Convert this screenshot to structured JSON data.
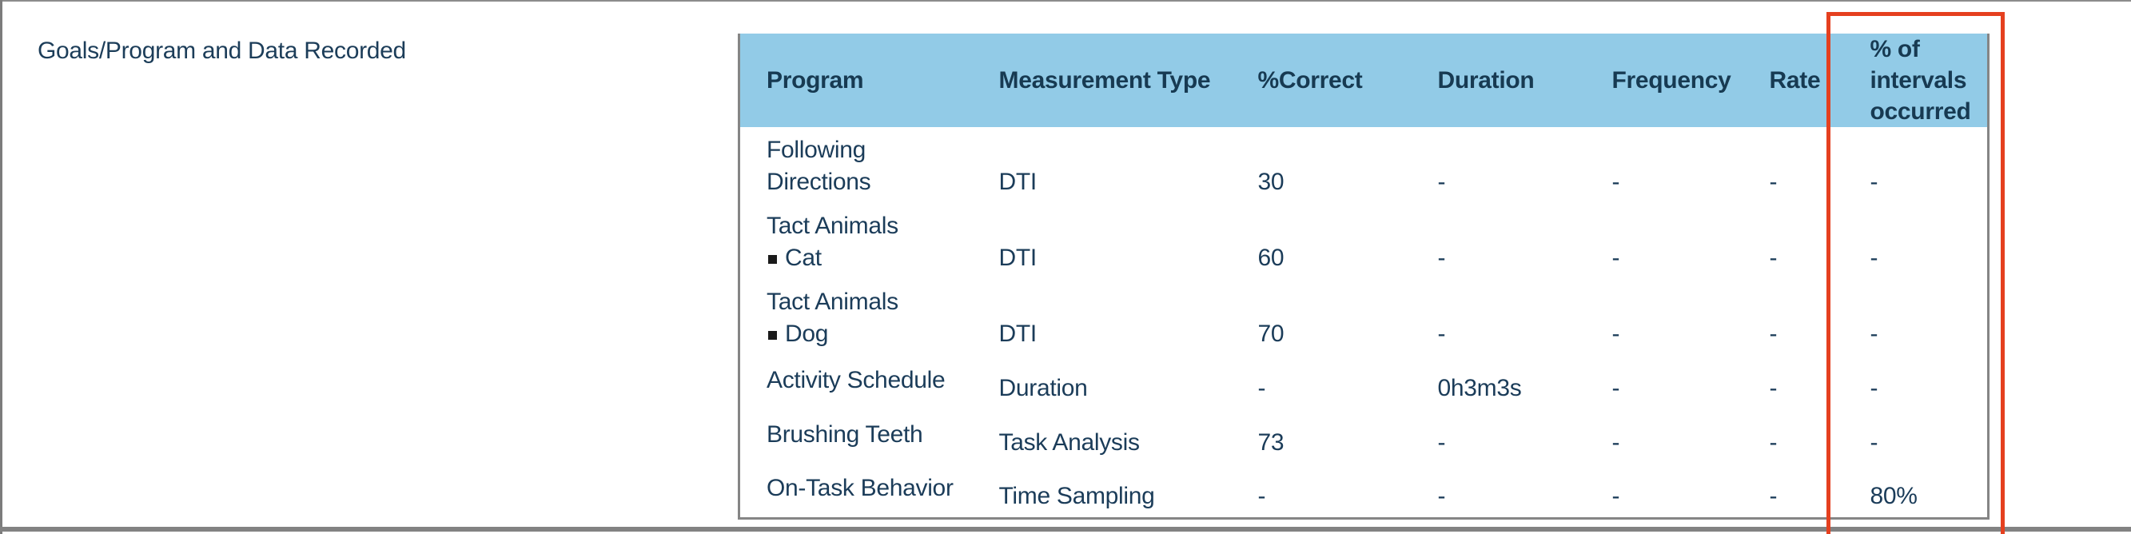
{
  "page": {
    "title": "Goals/Program and Data Recorded"
  },
  "table": {
    "columns": [
      {
        "key": "program",
        "label": "Program"
      },
      {
        "key": "measurement_type",
        "label": "Measurement Type"
      },
      {
        "key": "percent_correct",
        "label": "%Correct"
      },
      {
        "key": "duration",
        "label": "Duration"
      },
      {
        "key": "frequency",
        "label": "Frequency"
      },
      {
        "key": "rate",
        "label": "Rate"
      },
      {
        "key": "percent_intervals",
        "label": "% of intervals occurred"
      }
    ],
    "rows": [
      {
        "program_lines": [
          {
            "text": "Following"
          },
          {
            "text": "Directions"
          }
        ],
        "measurement_type": "DTI",
        "percent_correct": "30",
        "duration": "-",
        "frequency": "-",
        "rate": "-",
        "percent_intervals": "-"
      },
      {
        "program_lines": [
          {
            "text": "Tact Animals"
          },
          {
            "text": "Cat",
            "bullet": true
          }
        ],
        "measurement_type": "DTI",
        "percent_correct": "60",
        "duration": "-",
        "frequency": "-",
        "rate": "-",
        "percent_intervals": "-"
      },
      {
        "program_lines": [
          {
            "text": "Tact Animals"
          },
          {
            "text": "Dog",
            "bullet": true
          }
        ],
        "measurement_type": "DTI",
        "percent_correct": "70",
        "duration": "-",
        "frequency": "-",
        "rate": "-",
        "percent_intervals": "-"
      },
      {
        "program_lines": [
          {
            "text": "Activity Schedule"
          }
        ],
        "measurement_type": "Duration",
        "percent_correct": "-",
        "duration": "0h3m3s",
        "frequency": "-",
        "rate": "-",
        "percent_intervals": "-"
      },
      {
        "program_lines": [
          {
            "text": "Brushing Teeth"
          }
        ],
        "measurement_type": "Task Analysis",
        "percent_correct": "73",
        "duration": "-",
        "frequency": "-",
        "rate": "-",
        "percent_intervals": "-"
      },
      {
        "program_lines": [
          {
            "text": "On-Task Behavior"
          }
        ],
        "measurement_type": "Time Sampling",
        "percent_correct": "-",
        "duration": "-",
        "frequency": "-",
        "rate": "-",
        "percent_intervals": "80%"
      }
    ]
  },
  "annotation": {
    "highlighted_column": "% of intervals occurred"
  },
  "colors": {
    "header_background": "#92cbe7",
    "header_text": "#173a52",
    "body_text": "#1b3c59",
    "table_border": "#858585",
    "page_border": "#828282",
    "highlight": "#e5401f"
  }
}
